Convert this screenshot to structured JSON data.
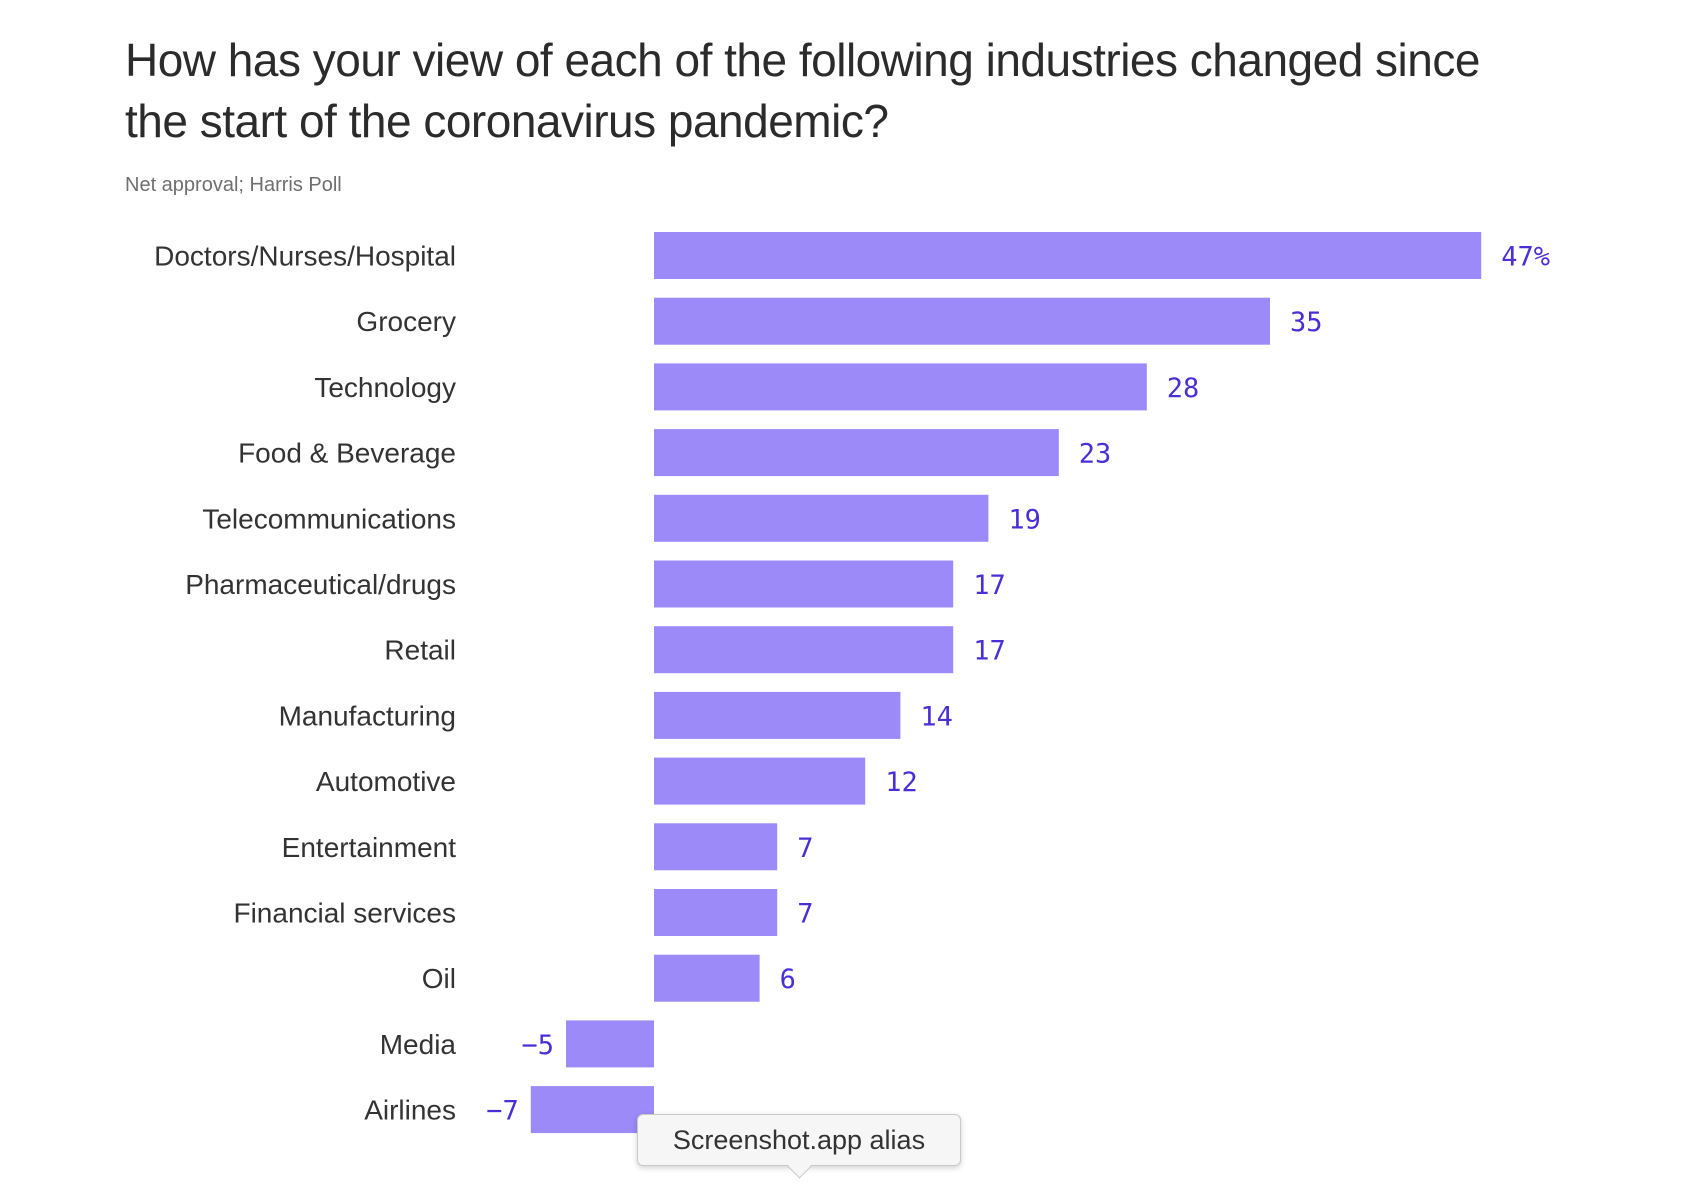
{
  "chart_data": {
    "type": "bar",
    "orientation": "horizontal",
    "title": "How has your view of each of the following industries changed since the start of the coronavirus pandemic?",
    "subtitle": "Net approval; Harris Poll",
    "categories": [
      "Doctors/Nurses/Hospital",
      "Grocery",
      "Technology",
      "Food & Beverage",
      "Telecommunications",
      "Pharmaceutical/drugs",
      "Retail",
      "Manufacturing",
      "Automotive",
      "Entertainment",
      "Financial services",
      "Oil",
      "Media",
      "Airlines"
    ],
    "values": [
      47,
      35,
      28,
      23,
      19,
      17,
      17,
      14,
      12,
      7,
      7,
      6,
      -5,
      -7
    ],
    "value_labels": [
      "47%",
      "35",
      "28",
      "23",
      "19",
      "17",
      "17",
      "14",
      "12",
      "7",
      "7",
      "6",
      "−5",
      "−7"
    ],
    "xlim": [
      -7,
      47
    ],
    "grid": false,
    "colors": {
      "bar": "#9b8af7",
      "value_text": "#4a2fd6"
    }
  },
  "tooltip": {
    "text": "Screenshot.app alias"
  }
}
